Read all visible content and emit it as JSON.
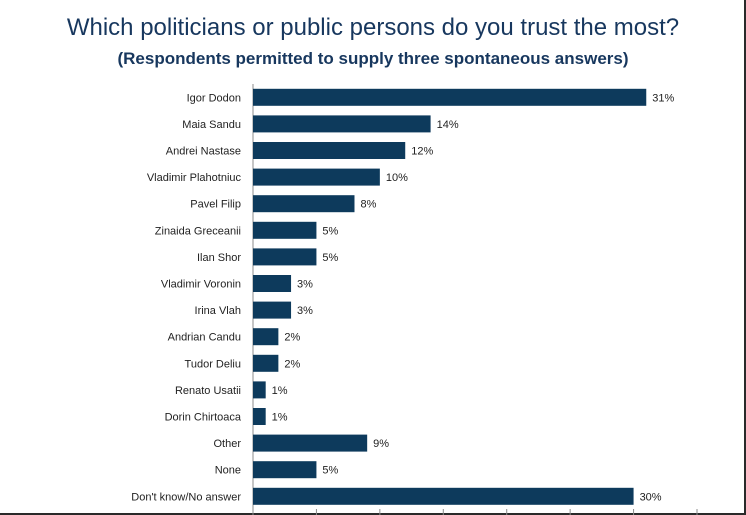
{
  "header": {
    "title": "Which politicians or public persons do you trust the most?",
    "subtitle": "(Respondents permitted to supply three spontaneous answers)"
  },
  "chart_data": {
    "type": "bar",
    "orientation": "horizontal",
    "categories": [
      "Igor Dodon",
      "Maia Sandu",
      "Andrei Nastase",
      "Vladimir Plahotniuc",
      "Pavel Filip",
      "Zinaida Greceanii",
      "Ilan Shor",
      "Vladimir Voronin",
      "Irina Vlah",
      "Andrian Candu",
      "Tudor Deliu",
      "Renato Usatii",
      "Dorin Chirtoaca",
      "Other",
      "None",
      "Don't know/No answer"
    ],
    "values": [
      31,
      14,
      12,
      10,
      8,
      5,
      5,
      3,
      3,
      2,
      2,
      1,
      1,
      9,
      5,
      30
    ],
    "value_labels": [
      "31%",
      "14%",
      "12%",
      "10%",
      "8%",
      "5%",
      "5%",
      "3%",
      "3%",
      "2%",
      "2%",
      "1%",
      "1%",
      "9%",
      "5%",
      "30%"
    ],
    "xlim": [
      0,
      35
    ],
    "bar_color": "#0d3a5c",
    "legend": "none",
    "grid": false
  }
}
